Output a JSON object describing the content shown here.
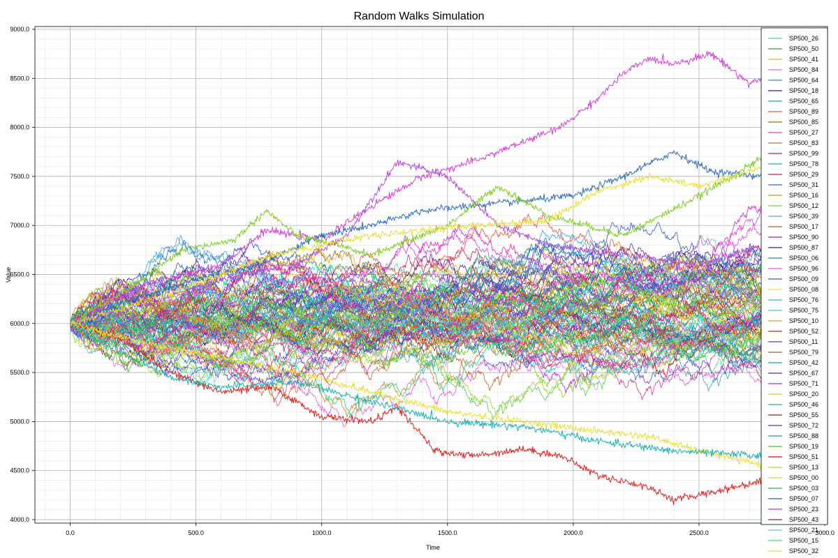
{
  "chart_data": {
    "type": "line",
    "title": "Random Walks Simulation",
    "xlabel": "Time",
    "ylabel": "Value",
    "xlim": [
      0,
      3000
    ],
    "ylim": [
      4000,
      9000
    ],
    "xticks": [
      "0.0",
      "500.0",
      "1000.0",
      "1500.0",
      "2000.0",
      "2500.0",
      "3000.0"
    ],
    "yticks": [
      "4000.0",
      "4500.0",
      "5000.0",
      "5500.0",
      "6000.0",
      "6500.0",
      "7000.0",
      "7500.0",
      "8000.0",
      "8500.0",
      "9000.0"
    ],
    "grid": true,
    "legend_position": "right",
    "series_count": 100,
    "n_steps": 2761,
    "start_value": 6000,
    "series": [
      {
        "name": "SP500_26",
        "color": "#4fd19a"
      },
      {
        "name": "SP500_50",
        "color": "#2ea02e"
      },
      {
        "name": "SP500_41",
        "color": "#e8b320"
      },
      {
        "name": "SP500_84",
        "color": "#d96ad8"
      },
      {
        "name": "SP500_64",
        "color": "#2e8fc7"
      },
      {
        "name": "SP500_18",
        "color": "#1f1fa8"
      },
      {
        "name": "SP500_65",
        "color": "#1fa87a"
      },
      {
        "name": "SP500_89",
        "color": "#e8533a"
      },
      {
        "name": "SP500_85",
        "color": "#8a7a10"
      },
      {
        "name": "SP500_27",
        "color": "#d63fd6"
      },
      {
        "name": "SP500_83",
        "color": "#9e7a2a"
      },
      {
        "name": "SP500_99",
        "color": "#c22a10"
      },
      {
        "name": "SP500_78",
        "color": "#3aa8a8"
      },
      {
        "name": "SP500_29",
        "color": "#c21f5a"
      },
      {
        "name": "SP500_31",
        "color": "#2a6fd6"
      },
      {
        "name": "SP500_16",
        "color": "#d68a1f"
      },
      {
        "name": "SP500_12",
        "color": "#7fcf1f"
      },
      {
        "name": "SP500_39",
        "color": "#5aa8e0"
      },
      {
        "name": "SP500_17",
        "color": "#c25a1f"
      },
      {
        "name": "SP500_90",
        "color": "#b01f8a"
      },
      {
        "name": "SP500_87",
        "color": "#2a2a8a"
      },
      {
        "name": "SP500_06",
        "color": "#1f8a8a"
      },
      {
        "name": "SP500_96",
        "color": "#e05ae0"
      },
      {
        "name": "SP500_09",
        "color": "#2a5ad6"
      },
      {
        "name": "SP500_08",
        "color": "#e8e030"
      },
      {
        "name": "SP500_76",
        "color": "#3ab0d6"
      },
      {
        "name": "SP500_75",
        "color": "#30c8c8"
      },
      {
        "name": "SP500_10",
        "color": "#d6a01f"
      },
      {
        "name": "SP500_52",
        "color": "#b0301f"
      },
      {
        "name": "SP500_11",
        "color": "#5a3ad6"
      },
      {
        "name": "SP500_79",
        "color": "#8a6a1f"
      },
      {
        "name": "SP500_42",
        "color": "#1fa85a"
      },
      {
        "name": "SP500_67",
        "color": "#6a1fa8"
      },
      {
        "name": "SP500_71",
        "color": "#d61fb0"
      },
      {
        "name": "SP500_20",
        "color": "#e8c21f"
      },
      {
        "name": "SP500_46",
        "color": "#1fb08a"
      },
      {
        "name": "SP500_55",
        "color": "#a81f1f"
      },
      {
        "name": "SP500_72",
        "color": "#3a3ac2"
      },
      {
        "name": "SP500_88",
        "color": "#1f9ab0"
      },
      {
        "name": "SP500_19",
        "color": "#5ac21f"
      },
      {
        "name": "SP500_51",
        "color": "#c2101f"
      },
      {
        "name": "SP500_13",
        "color": "#a0e030"
      },
      {
        "name": "SP500_00",
        "color": "#d6d61f"
      },
      {
        "name": "SP500_03",
        "color": "#30a860"
      },
      {
        "name": "SP500_07",
        "color": "#1f6a8a"
      },
      {
        "name": "SP500_23",
        "color": "#e01fc2"
      },
      {
        "name": "SP500_43",
        "color": "#9e1f3a"
      },
      {
        "name": "SP500_21",
        "color": "#60c0e0"
      },
      {
        "name": "SP500_15",
        "color": "#40e060"
      },
      {
        "name": "SP500_32",
        "color": "#e0e040"
      },
      {
        "name": "",
        "color": "#3ae0a0"
      },
      {
        "name": "",
        "color": "#1f7ac2"
      },
      {
        "name": "",
        "color": "#c21fe0"
      },
      {
        "name": "",
        "color": "#e03a3a"
      },
      {
        "name": "",
        "color": "#50d050"
      },
      {
        "name": "",
        "color": "#2ac2c2"
      },
      {
        "name": "",
        "color": "#c2c21f"
      },
      {
        "name": "",
        "color": "#7a2ae0"
      },
      {
        "name": "",
        "color": "#e07a1f"
      },
      {
        "name": "",
        "color": "#1fe0c2"
      },
      {
        "name": "",
        "color": "#d03ab0"
      },
      {
        "name": "",
        "color": "#3a9ae0"
      },
      {
        "name": "",
        "color": "#b0e01f"
      },
      {
        "name": "",
        "color": "#e01f7a"
      },
      {
        "name": "",
        "color": "#1fc23a"
      },
      {
        "name": "",
        "color": "#4a4ae0"
      },
      {
        "name": "",
        "color": "#e0b03a"
      },
      {
        "name": "",
        "color": "#30d0e8"
      },
      {
        "name": "",
        "color": "#a030d0"
      },
      {
        "name": "",
        "color": "#e05050"
      },
      {
        "name": "",
        "color": "#60b020"
      },
      {
        "name": "",
        "color": "#2060d0"
      },
      {
        "name": "",
        "color": "#d0d060"
      },
      {
        "name": "",
        "color": "#e040e0"
      },
      {
        "name": "",
        "color": "#20a0a0"
      },
      {
        "name": "",
        "color": "#c06020"
      },
      {
        "name": "",
        "color": "#40c0a0"
      },
      {
        "name": "",
        "color": "#9020c0"
      },
      {
        "name": "",
        "color": "#e0a0e0"
      },
      {
        "name": "",
        "color": "#2080e0"
      },
      {
        "name": "",
        "color": "#80e040"
      },
      {
        "name": "",
        "color": "#d02060"
      },
      {
        "name": "",
        "color": "#20c0e0"
      },
      {
        "name": "",
        "color": "#e0c040"
      },
      {
        "name": "",
        "color": "#6040e0"
      },
      {
        "name": "",
        "color": "#40e0e0"
      },
      {
        "name": "",
        "color": "#c040a0"
      },
      {
        "name": "",
        "color": "#30b050"
      },
      {
        "name": "",
        "color": "#e08020"
      },
      {
        "name": "",
        "color": "#2050a0"
      },
      {
        "name": "",
        "color": "#a0d020"
      },
      {
        "name": "",
        "color": "#e03090"
      },
      {
        "name": "",
        "color": "#50a0e0"
      },
      {
        "name": "",
        "color": "#d0e050"
      },
      {
        "name": "",
        "color": "#20d080"
      },
      {
        "name": "",
        "color": "#b020b0"
      },
      {
        "name": "",
        "color": "#e06040"
      },
      {
        "name": "",
        "color": "#3070c0"
      },
      {
        "name": "",
        "color": "#70d0b0"
      },
      {
        "name": "",
        "color": "#c0a020"
      }
    ],
    "highlighted_paths": [
      {
        "color": "#d63fd6",
        "points": [
          [
            0,
            6000
          ],
          [
            300,
            6400
          ],
          [
            600,
            6600
          ],
          [
            780,
            6950
          ],
          [
            1000,
            6850
          ],
          [
            1200,
            7200
          ],
          [
            1400,
            7500
          ],
          [
            1600,
            7650
          ],
          [
            1800,
            7850
          ],
          [
            1950,
            8000
          ],
          [
            2100,
            8300
          ],
          [
            2200,
            8550
          ],
          [
            2300,
            8700
          ],
          [
            2400,
            8650
          ],
          [
            2550,
            8750
          ],
          [
            2700,
            8450
          ],
          [
            2761,
            8500
          ]
        ]
      },
      {
        "color": "#e0221e",
        "points": [
          [
            0,
            6000
          ],
          [
            200,
            5850
          ],
          [
            400,
            5500
          ],
          [
            600,
            5300
          ],
          [
            800,
            5350
          ],
          [
            1000,
            5050
          ],
          [
            1200,
            5000
          ],
          [
            1300,
            5150
          ],
          [
            1450,
            4700
          ],
          [
            1600,
            4650
          ],
          [
            1800,
            4720
          ],
          [
            1950,
            4650
          ],
          [
            2100,
            4450
          ],
          [
            2300,
            4330
          ],
          [
            2400,
            4200
          ],
          [
            2550,
            4280
          ],
          [
            2761,
            4400
          ]
        ]
      },
      {
        "color": "#2e6fb8",
        "points": [
          [
            0,
            6000
          ],
          [
            250,
            6250
          ],
          [
            500,
            6450
          ],
          [
            750,
            6600
          ],
          [
            1000,
            6900
          ],
          [
            1200,
            7000
          ],
          [
            1400,
            7150
          ],
          [
            1600,
            7200
          ],
          [
            1800,
            7250
          ],
          [
            2000,
            7300
          ],
          [
            2200,
            7500
          ],
          [
            2400,
            7750
          ],
          [
            2550,
            7550
          ],
          [
            2761,
            7500
          ]
        ]
      },
      {
        "color": "#e8e030",
        "points": [
          [
            0,
            6000
          ],
          [
            300,
            5800
          ],
          [
            600,
            5650
          ],
          [
            900,
            5500
          ],
          [
            1200,
            5300
          ],
          [
            1500,
            5100
          ],
          [
            1800,
            5000
          ],
          [
            2100,
            4900
          ],
          [
            2300,
            4850
          ],
          [
            2500,
            4700
          ],
          [
            2761,
            4550
          ]
        ]
      },
      {
        "color": "#7fcf1f",
        "points": [
          [
            0,
            6000
          ],
          [
            200,
            6300
          ],
          [
            450,
            6750
          ],
          [
            650,
            6850
          ],
          [
            780,
            7150
          ],
          [
            900,
            6900
          ],
          [
            1200,
            6700
          ],
          [
            1500,
            7000
          ],
          [
            1700,
            7400
          ],
          [
            1900,
            7100
          ],
          [
            2200,
            6900
          ],
          [
            2500,
            7300
          ],
          [
            2761,
            7700
          ]
        ]
      },
      {
        "color": "#b44fd9",
        "points": [
          [
            0,
            6000
          ],
          [
            300,
            6200
          ],
          [
            600,
            6450
          ],
          [
            900,
            6600
          ],
          [
            1100,
            6900
          ],
          [
            1300,
            7650
          ],
          [
            1500,
            7500
          ],
          [
            1700,
            7000
          ],
          [
            1900,
            6800
          ],
          [
            2200,
            6700
          ],
          [
            2500,
            6600
          ],
          [
            2761,
            6800
          ]
        ]
      },
      {
        "color": "#1fb0b0",
        "points": [
          [
            0,
            6000
          ],
          [
            200,
            5700
          ],
          [
            400,
            5450
          ],
          [
            600,
            5350
          ],
          [
            900,
            5400
          ],
          [
            1200,
            5200
          ],
          [
            1500,
            5000
          ],
          [
            1800,
            4950
          ],
          [
            2100,
            4800
          ],
          [
            2400,
            4700
          ],
          [
            2761,
            4650
          ]
        ]
      },
      {
        "color": "#e8e030",
        "points": [
          [
            0,
            6000
          ],
          [
            400,
            6300
          ],
          [
            800,
            6700
          ],
          [
            1200,
            6900
          ],
          [
            1600,
            7000
          ],
          [
            1900,
            7050
          ],
          [
            2100,
            7350
          ],
          [
            2300,
            7500
          ],
          [
            2500,
            7400
          ],
          [
            2761,
            7600
          ]
        ]
      }
    ]
  }
}
